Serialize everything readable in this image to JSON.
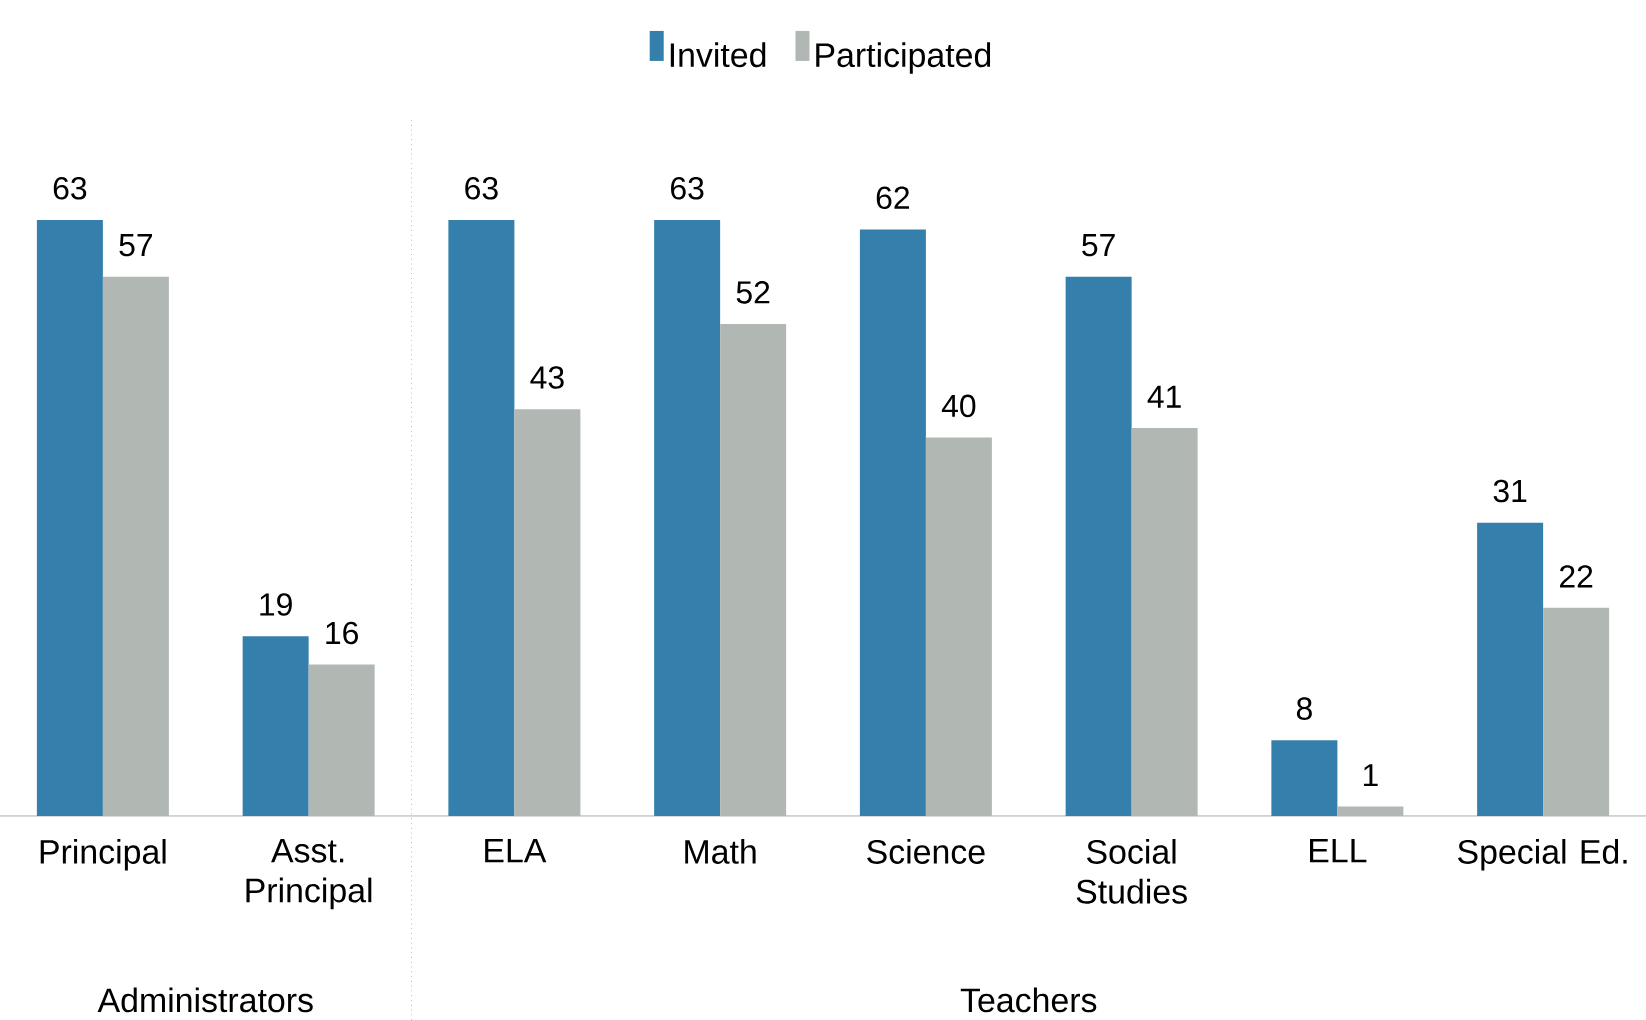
{
  "chart_data": {
    "type": "bar",
    "categories": [
      "Principal",
      "Asst. Principal",
      "ELA",
      "Math",
      "Science",
      "Social Studies",
      "ELL",
      "Special Ed."
    ],
    "series": [
      {
        "name": "Invited",
        "color": "#347fab",
        "values": [
          63,
          19,
          63,
          63,
          62,
          57,
          8,
          31
        ]
      },
      {
        "name": "Participated",
        "color": "#b1b8b4",
        "values": [
          57,
          16,
          43,
          52,
          40,
          41,
          1,
          22
        ]
      }
    ],
    "data_labels": true,
    "legend": "top",
    "grid": false,
    "annotations": [
      "Administrators",
      "Teachers"
    ]
  }
}
